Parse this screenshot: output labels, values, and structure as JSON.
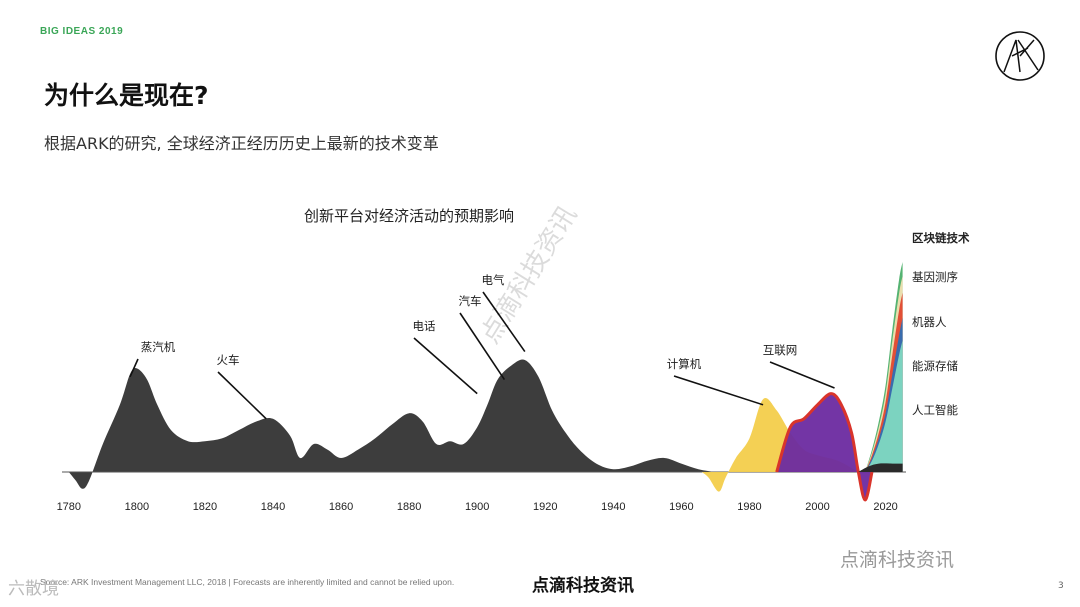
{
  "header": {
    "brand": "BIG IDEAS 2019",
    "title": "为什么是现在?",
    "subtitle": "根据ARK的研究, 全球经济正经历历史上最新的技术变革"
  },
  "logo": {
    "icon": "ark-logo-icon"
  },
  "footer": {
    "source": "Source: ARK Investment Management LLC, 2018 | Forecasts are inherently limited and cannot be relied upon.",
    "watermark": "点滴科技资讯",
    "page_number": "3"
  },
  "watermarks": {
    "right": "点滴科技资讯",
    "left": "六散境",
    "diagonal": "点滴科技资讯"
  },
  "chart_data": {
    "type": "area",
    "title": "创新平台对经济活动的预期影响",
    "xlabel": "",
    "ylabel": "",
    "xlim": [
      1778,
      2026
    ],
    "ylim": [
      -8,
      75
    ],
    "x_ticks": [
      1780,
      1800,
      1820,
      1840,
      1860,
      1880,
      1900,
      1920,
      1940,
      1960,
      1980,
      2000,
      2020
    ],
    "grid": false,
    "colors": {
      "historical": "#3d3d3d",
      "computer": "#f3cd4b",
      "internet": "#6b2aa0",
      "internet_top": "#d9342b",
      "ai": "#7fd9c1",
      "energy_storage": "#2f6eb5",
      "robotics": "#e2472f",
      "genome": "#f2e0b0",
      "blockchain": "#4caf6a"
    },
    "historical": {
      "x": [
        1780,
        1782,
        1784,
        1786,
        1790,
        1795,
        1798,
        1800,
        1803,
        1806,
        1810,
        1815,
        1820,
        1825,
        1830,
        1835,
        1840,
        1845,
        1848,
        1852,
        1856,
        1860,
        1865,
        1870,
        1875,
        1880,
        1884,
        1888,
        1892,
        1896,
        1900,
        1903,
        1906,
        1910,
        1914,
        1918,
        1922,
        1926,
        1930,
        1935,
        1940,
        1945,
        1950,
        1955,
        1960,
        1965,
        1970
      ],
      "y": [
        0,
        -3,
        -6,
        -3,
        10,
        24,
        35,
        37,
        33,
        24,
        15,
        11,
        11,
        12,
        15,
        18,
        19,
        13,
        5,
        10,
        8,
        5,
        8,
        12,
        17,
        21,
        18,
        10,
        11,
        10,
        16,
        24,
        33,
        38,
        40,
        34,
        22,
        14,
        8,
        3,
        1,
        2,
        4,
        5,
        3,
        1,
        0
      ]
    },
    "series": [
      {
        "name": "计算机",
        "x": [
          1966,
          1968,
          1971,
          1973,
          1976,
          1980,
          1984,
          1988,
          1992,
          1996,
          2000,
          2006,
          2012
        ],
        "y": [
          0,
          -2,
          -7,
          -2,
          5,
          12,
          26,
          22,
          14,
          8,
          6,
          4,
          0
        ]
      },
      {
        "name": "互联网",
        "x": [
          1988,
          1992,
          1996,
          2000,
          2004,
          2007,
          2010,
          2012,
          2014,
          2016
        ],
        "y": [
          0,
          16,
          19,
          24,
          28,
          24,
          14,
          0,
          -10,
          0
        ]
      },
      {
        "name": "人工智能",
        "x": [
          2014,
          2016,
          2018,
          2020,
          2022,
          2024,
          2025
        ],
        "y": [
          0,
          4,
          10,
          18,
          30,
          42,
          47
        ]
      },
      {
        "name": "能源存储",
        "x": [
          2014,
          2016,
          2018,
          2020,
          2022,
          2024,
          2025
        ],
        "y": [
          0,
          5,
          12,
          21,
          35,
          49,
          55
        ]
      },
      {
        "name": "机器人",
        "x": [
          2014,
          2016,
          2018,
          2020,
          2022,
          2024,
          2025
        ],
        "y": [
          0,
          6,
          14,
          25,
          42,
          58,
          64
        ]
      },
      {
        "name": "基因测序",
        "x": [
          2014,
          2016,
          2018,
          2020,
          2022,
          2024,
          2025
        ],
        "y": [
          0,
          7,
          16,
          28,
          47,
          64,
          70
        ]
      },
      {
        "name": "区块链技术",
        "x": [
          2014,
          2016,
          2018,
          2020,
          2022,
          2024,
          2025
        ],
        "y": [
          0,
          8,
          18,
          31,
          51,
          69,
          75
        ]
      }
    ],
    "annotations": [
      {
        "label": "蒸汽机",
        "x": 1798,
        "y": 34
      },
      {
        "label": "火车",
        "x": 1838,
        "y": 19
      },
      {
        "label": "电话",
        "x": 1900,
        "y": 28
      },
      {
        "label": "汽车",
        "x": 1908,
        "y": 33
      },
      {
        "label": "电气",
        "x": 1914,
        "y": 43
      },
      {
        "label": "计算机",
        "x": 1984,
        "y": 24
      },
      {
        "label": "互联网",
        "x": 2005,
        "y": 30
      }
    ]
  }
}
